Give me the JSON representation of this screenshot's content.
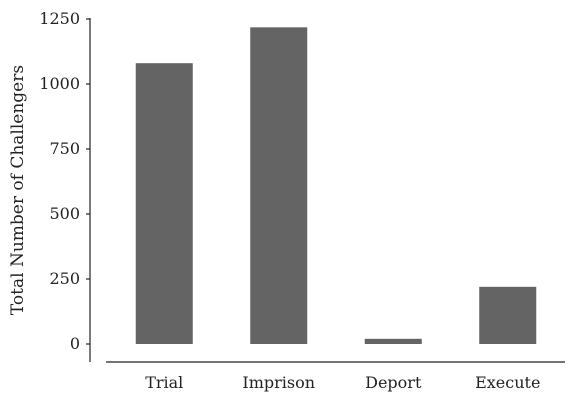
{
  "chart_data": {
    "type": "bar",
    "categories": [
      "Trial",
      "Imprison",
      "Deport",
      "Execute"
    ],
    "values": [
      1080,
      1218,
      20,
      220
    ],
    "ylabel": "Total Number of Challengers",
    "xlabel": "",
    "ylim": [
      0,
      1250
    ],
    "yticks": [
      0,
      250,
      500,
      750,
      1000,
      1250
    ],
    "bar_color": "#646464",
    "grid": false
  }
}
